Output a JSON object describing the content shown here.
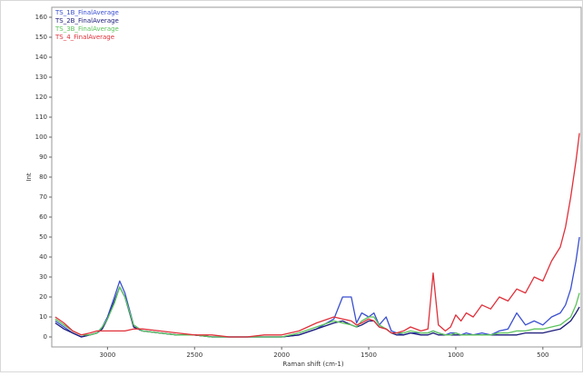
{
  "chart_data": {
    "type": "line",
    "xlabel": "Raman shift (cm-1)",
    "ylabel": "Int",
    "xlim": [
      3320,
      280
    ],
    "ylim": [
      -5,
      165
    ],
    "xticks": [
      3000,
      2500,
      2000,
      1500,
      1000,
      500
    ],
    "yticks": [
      0,
      10,
      20,
      30,
      40,
      50,
      60,
      70,
      80,
      90,
      100,
      110,
      120,
      130,
      140,
      150,
      160
    ],
    "legend": "upper left",
    "x": [
      3300,
      3250,
      3200,
      3150,
      3100,
      3060,
      3030,
      3000,
      2960,
      2930,
      2900,
      2850,
      2800,
      2700,
      2600,
      2500,
      2400,
      2300,
      2200,
      2100,
      2000,
      1900,
      1800,
      1700,
      1650,
      1600,
      1570,
      1540,
      1500,
      1470,
      1440,
      1400,
      1370,
      1340,
      1300,
      1260,
      1200,
      1160,
      1130,
      1100,
      1060,
      1030,
      1000,
      970,
      940,
      900,
      850,
      800,
      750,
      700,
      650,
      600,
      550,
      500,
      450,
      400,
      370,
      340,
      310,
      290
    ],
    "series": [
      {
        "name": "TS_1B_FinalAverage",
        "color": "#3a4fd0",
        "values": [
          8,
          5,
          2,
          0,
          1,
          2,
          5,
          10,
          20,
          28,
          22,
          6,
          3,
          2,
          1,
          1,
          0,
          0,
          0,
          0,
          0,
          1,
          4,
          9,
          20,
          20,
          7,
          12,
          10,
          12,
          6,
          10,
          3,
          2,
          1,
          2,
          2,
          2,
          3,
          2,
          1,
          2,
          2,
          1,
          2,
          1,
          2,
          1,
          3,
          4,
          12,
          6,
          8,
          6,
          10,
          12,
          16,
          24,
          38,
          50
        ]
      },
      {
        "name": "TS_2B_FinalAverage",
        "color": "#1c1c7a",
        "values": [
          7,
          4,
          2,
          0,
          1,
          2,
          4,
          9,
          18,
          25,
          20,
          5,
          3,
          2,
          1,
          1,
          0,
          0,
          0,
          0,
          0,
          1,
          4,
          7,
          8,
          6,
          5,
          6,
          8,
          8,
          5,
          4,
          2,
          1,
          1,
          2,
          1,
          1,
          2,
          1,
          1,
          1,
          1,
          1,
          1,
          1,
          1,
          1,
          1,
          1,
          1,
          2,
          2,
          2,
          3,
          4,
          6,
          8,
          12,
          15
        ]
      },
      {
        "name": "TS_3B_FinalAverage",
        "color": "#5cc45c",
        "values": [
          9,
          6,
          3,
          1,
          1,
          2,
          5,
          9,
          17,
          25,
          20,
          6,
          3,
          2,
          1,
          1,
          0,
          0,
          0,
          0,
          0,
          2,
          5,
          8,
          7,
          6,
          5,
          8,
          10,
          10,
          6,
          4,
          2,
          2,
          2,
          3,
          2,
          2,
          3,
          2,
          1,
          1,
          2,
          1,
          1,
          1,
          1,
          1,
          2,
          2,
          3,
          3,
          4,
          4,
          5,
          6,
          8,
          10,
          16,
          22
        ]
      },
      {
        "name": "TS_4_FinalAverage",
        "color": "#e0303a",
        "values": [
          10,
          7,
          3,
          1,
          2,
          3,
          3,
          3,
          3,
          3,
          3,
          4,
          4,
          3,
          2,
          1,
          1,
          0,
          0,
          1,
          1,
          3,
          7,
          10,
          9,
          8,
          6,
          7,
          9,
          8,
          5,
          4,
          2,
          2,
          3,
          5,
          3,
          4,
          32,
          6,
          3,
          5,
          11,
          8,
          12,
          10,
          16,
          14,
          20,
          18,
          24,
          22,
          30,
          28,
          38,
          45,
          55,
          70,
          88,
          102
        ]
      }
    ]
  }
}
